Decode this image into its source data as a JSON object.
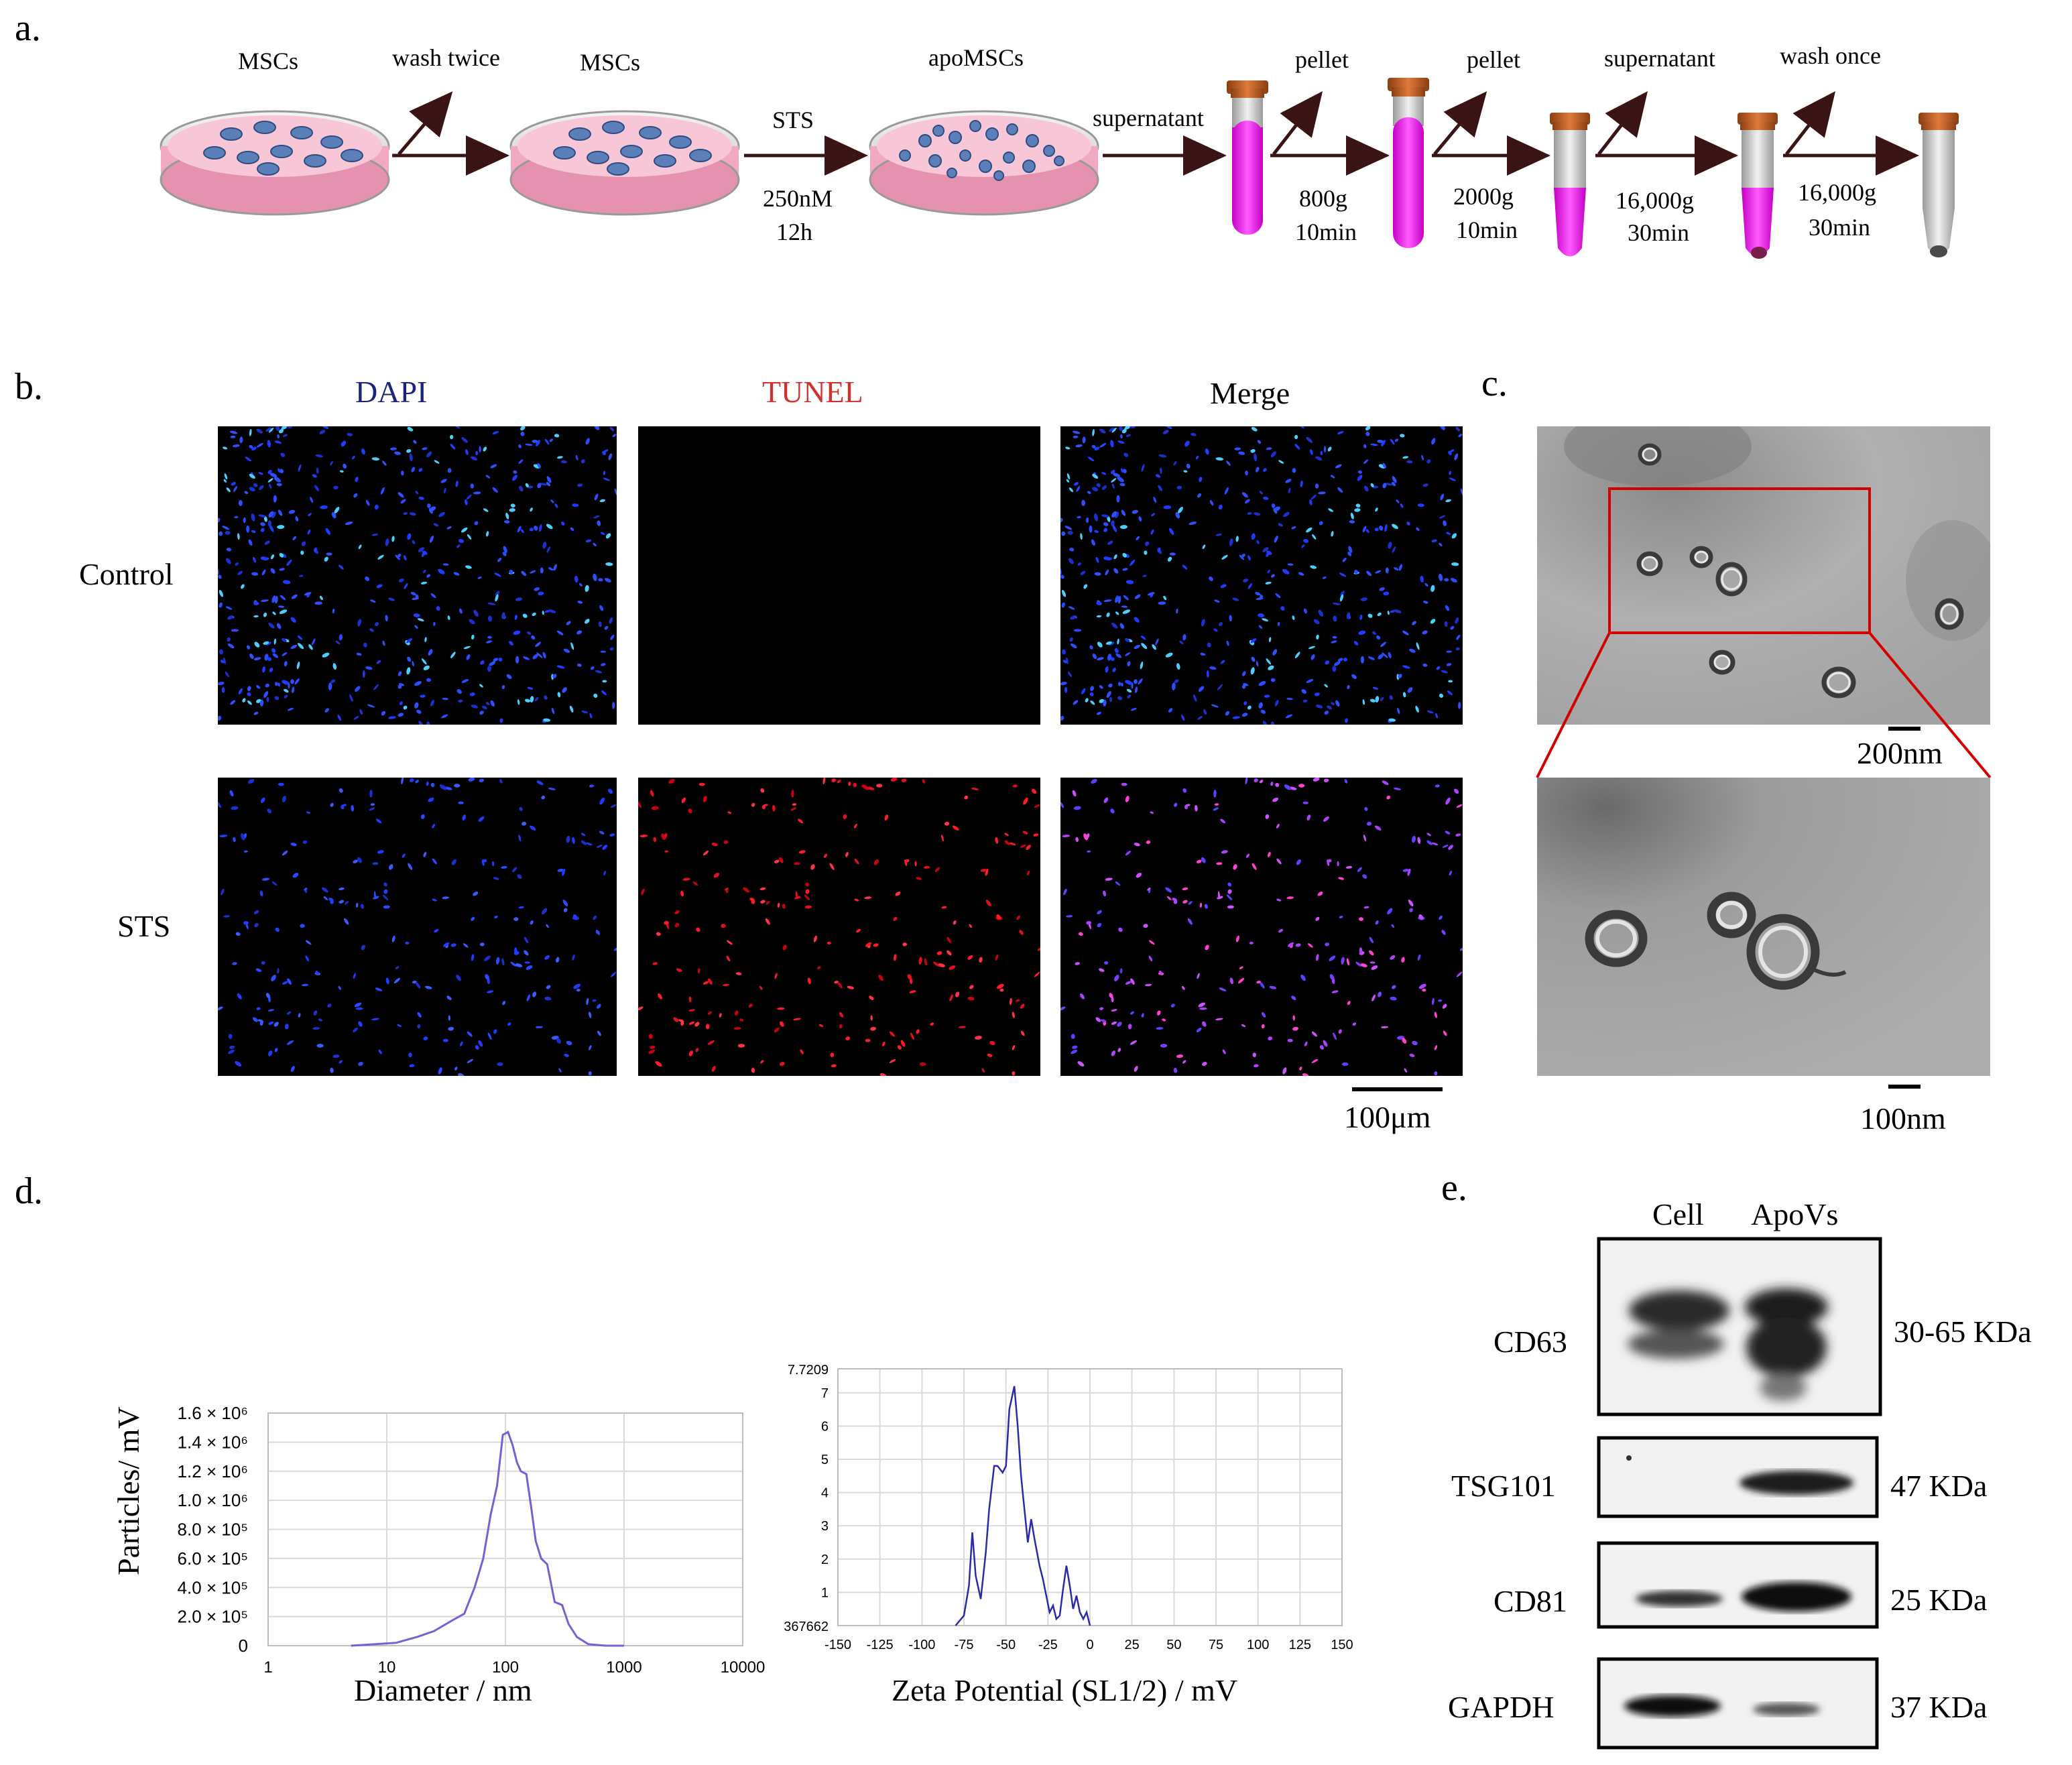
{
  "panels": {
    "a": "a.",
    "b": "b.",
    "c": "c.",
    "d": "d.",
    "e": "e."
  },
  "panel_a": {
    "dish1_label": "MSCs",
    "step1_label": "wash twice",
    "dish2_label": "MSCs",
    "step2_label": "STS",
    "step2_cond1": "250nM",
    "step2_cond2": "12h",
    "dish3_label": "apoMSCs",
    "step3_label": "supernatant",
    "step4_label": "pellet",
    "step4_cond1": "800g",
    "step4_cond2": "10min",
    "step5_label": "pellet",
    "step5_cond1": "2000g",
    "step5_cond2": "10min",
    "step6_label": "supernatant",
    "step6_cond1": "16,000g",
    "step6_cond2": "30min",
    "step7_label": "wash once",
    "step7_cond1": "16,000g",
    "step7_cond2": "30min"
  },
  "panel_b": {
    "col_dapi": "DAPI",
    "col_tunel": "TUNEL",
    "col_merge": "Merge",
    "row_control": "Control",
    "row_sts": "STS",
    "scale_bar": "100μm",
    "colors": {
      "dapi": "#1a237e",
      "tunel": "#d32f2f"
    }
  },
  "panel_c": {
    "scale_top": "200nm",
    "scale_bottom": "100nm"
  },
  "panel_d": {
    "chart_data": [
      {
        "type": "line",
        "xlabel": "Diameter / nm",
        "ylabel": "Particles/ mV",
        "xscale": "log",
        "xlim": [
          1,
          10000
        ],
        "ylim": [
          0,
          1600000
        ],
        "x_ticks": [
          "1",
          "10",
          "100",
          "1000",
          "10000"
        ],
        "y_ticks": [
          "0",
          "2.0 × 10⁵",
          "4.0 × 10⁵",
          "6.0 × 10⁵",
          "8.0 × 10⁵",
          "1.0 × 10⁶",
          "1.2 × 10⁶",
          "1.4 × 10⁶",
          "1.6 × 10⁶"
        ],
        "line_color": "#6f64d6",
        "x": [
          5,
          8,
          12,
          18,
          25,
          35,
          45,
          55,
          65,
          75,
          85,
          95,
          105,
          115,
          125,
          135,
          150,
          165,
          180,
          200,
          225,
          260,
          300,
          340,
          400,
          500,
          700,
          1000
        ],
        "values": [
          0,
          10000,
          20000,
          60000,
          100000,
          170000,
          220000,
          400000,
          600000,
          900000,
          1100000,
          1450000,
          1470000,
          1380000,
          1260000,
          1200000,
          1180000,
          950000,
          720000,
          600000,
          560000,
          300000,
          280000,
          150000,
          60000,
          10000,
          0,
          0
        ]
      },
      {
        "type": "line",
        "xlabel": "Zeta Potential (SL1/2) / mV",
        "ylabel": "",
        "xlim": [
          -150,
          150
        ],
        "ylim": [
          0,
          7.7209
        ],
        "ylim_labels": [
          "367662",
          "7.7209"
        ],
        "x_ticks": [
          "-150",
          "-125",
          "-100",
          "-75",
          "-50",
          "-25",
          "0",
          "25",
          "50",
          "75",
          "100",
          "125",
          "150"
        ],
        "y_ticks": [
          "1",
          "2",
          "3",
          "4",
          "5",
          "6",
          "7"
        ],
        "line_color": "#2b2ba8",
        "x": [
          -80,
          -75,
          -72,
          -70,
          -68,
          -65,
          -62,
          -60,
          -57,
          -55,
          -52,
          -50,
          -48,
          -45,
          -43,
          -41,
          -39,
          -37,
          -35,
          -33,
          -30,
          -28,
          -26,
          -24,
          -22,
          -20,
          -18,
          -16,
          -14,
          -12,
          -10,
          -8,
          -6,
          -4,
          -2,
          0
        ],
        "values": [
          0,
          0.3,
          1.2,
          2.8,
          1.5,
          0.8,
          2.2,
          3.5,
          4.8,
          4.8,
          4.6,
          4.8,
          6.5,
          7.2,
          6.0,
          4.5,
          3.5,
          2.5,
          3.2,
          2.6,
          1.8,
          1.4,
          0.9,
          0.4,
          0.6,
          0.2,
          0.3,
          1.1,
          1.8,
          1.2,
          0.5,
          0.9,
          0.4,
          0.2,
          0.4,
          0
        ]
      }
    ]
  },
  "panel_e": {
    "col_cell": "Cell",
    "col_apovs": "ApoVs",
    "rows": [
      {
        "name": "CD63",
        "size": "30-65 KDa"
      },
      {
        "name": "TSG101",
        "size": "47 KDa"
      },
      {
        "name": "CD81",
        "size": "25 KDa"
      },
      {
        "name": "GAPDH",
        "size": "37 KDa"
      }
    ]
  }
}
